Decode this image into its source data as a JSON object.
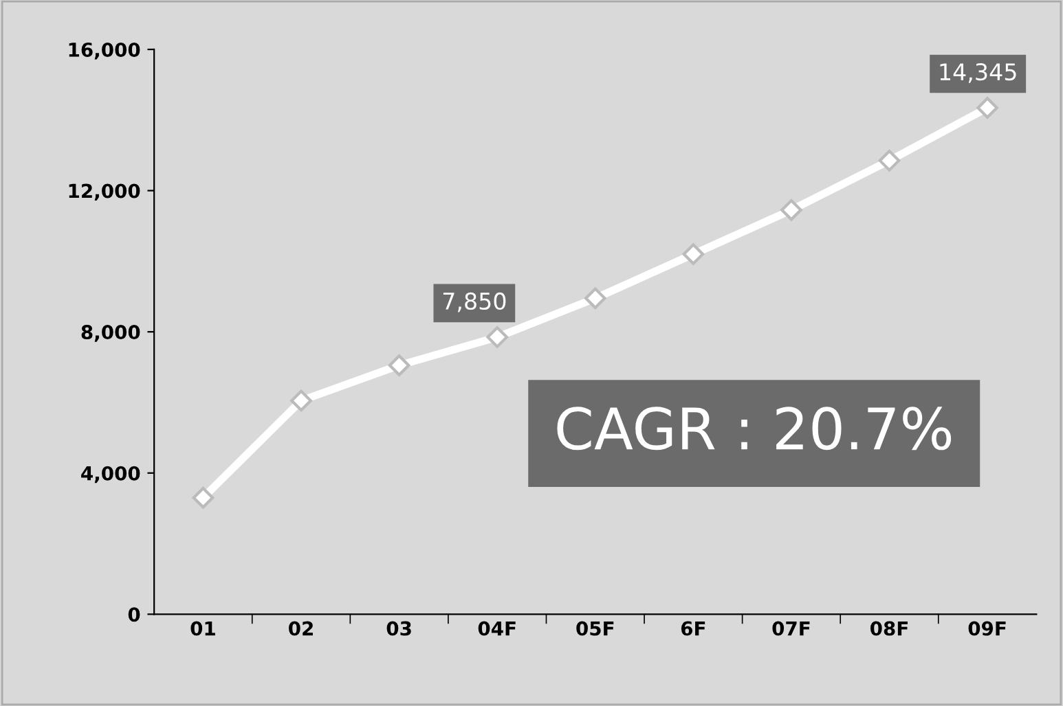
{
  "chart_data": {
    "type": "line",
    "categories": [
      "01",
      "02",
      "03",
      "04F",
      "05F",
      "6F",
      "07F",
      "08F",
      "09F"
    ],
    "series": [
      {
        "color": "#ffffff",
        "values": [
          3300,
          6050,
          7050,
          7850,
          8950,
          10200,
          11450,
          12850,
          14345
        ],
        "value_labels": [
          null,
          null,
          null,
          "7,850",
          null,
          null,
          null,
          null,
          "14,345"
        ]
      }
    ],
    "ylim": [
      0,
      16000
    ],
    "yticks": [
      {
        "value": 0,
        "label": "0"
      },
      {
        "value": 4000,
        "label": "4,000"
      },
      {
        "value": 8000,
        "label": "8,000"
      },
      {
        "value": 12000,
        "label": "12,000"
      },
      {
        "value": 16000,
        "label": "16,000"
      }
    ],
    "annotations": [
      "CAGR : 20.7%"
    ],
    "marker": "diamond",
    "grid": false,
    "legend": false
  }
}
